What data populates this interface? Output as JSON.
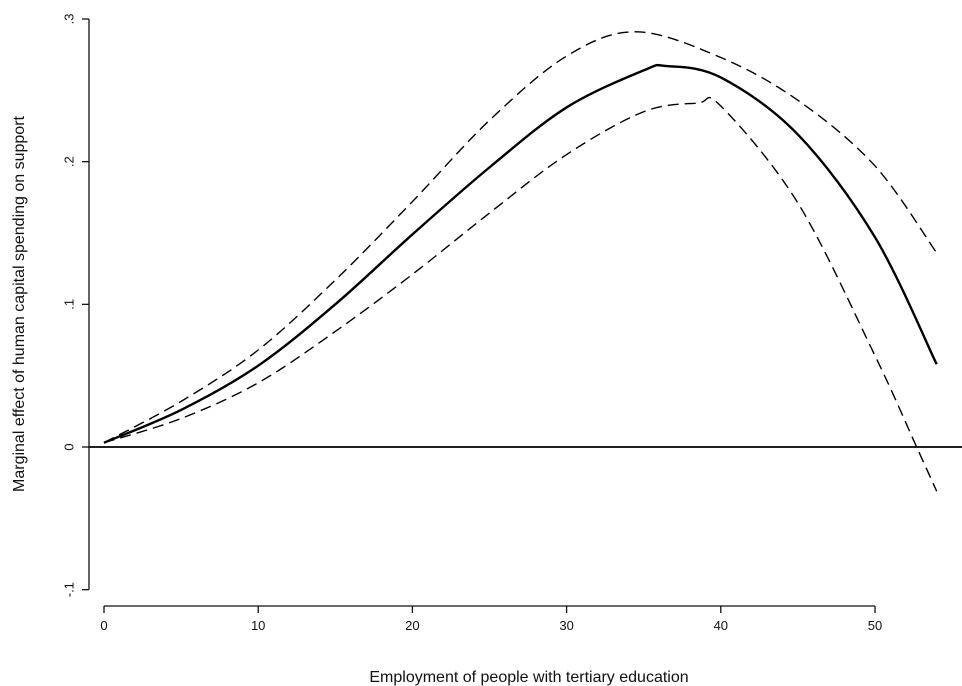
{
  "chart_data": {
    "type": "line",
    "title": "",
    "xlabel": "Employment of people with tertiary education",
    "ylabel": "Marginal effect of human capital spending on support",
    "xlim": [
      -1.5,
      55.3
    ],
    "ylim": [
      -0.105,
      0.305
    ],
    "x_ticks": [
      0,
      10,
      20,
      30,
      40,
      50
    ],
    "x_tick_labels": [
      "0",
      "10",
      "20",
      "30",
      "40",
      "50"
    ],
    "y_ticks": [
      -0.1,
      0,
      0.1,
      0.2,
      0.3
    ],
    "y_tick_labels": [
      "-.1",
      "0",
      ".1",
      ".2",
      ".3"
    ],
    "grid": false,
    "legend": "none",
    "reference_line": {
      "y": 0
    },
    "series": [
      {
        "role": "estimate",
        "style": "solid",
        "x": [
          0,
          5,
          10,
          15,
          20,
          25,
          30,
          35,
          36.5,
          40,
          45,
          50,
          54
        ],
        "y": [
          0.003,
          0.026,
          0.057,
          0.1,
          0.149,
          0.196,
          0.238,
          0.264,
          0.267,
          0.259,
          0.219,
          0.147,
          0.058
        ]
      },
      {
        "role": "upper-bound",
        "style": "dashed",
        "x": [
          0,
          5,
          10,
          15,
          20,
          25,
          30,
          34.5,
          40,
          45,
          50,
          54
        ],
        "y": [
          0.003,
          0.032,
          0.068,
          0.117,
          0.172,
          0.229,
          0.274,
          0.291,
          0.273,
          0.243,
          0.197,
          0.136
        ]
      },
      {
        "role": "lower-bound",
        "style": "dashed",
        "x": [
          0,
          5,
          10,
          15,
          20,
          25,
          30,
          35,
          38.5,
          40,
          45,
          50,
          52.7,
          54
        ],
        "y": [
          0.003,
          0.02,
          0.045,
          0.081,
          0.121,
          0.164,
          0.205,
          0.235,
          0.241,
          0.239,
          0.171,
          0.064,
          0.0,
          -0.031
        ]
      }
    ]
  }
}
